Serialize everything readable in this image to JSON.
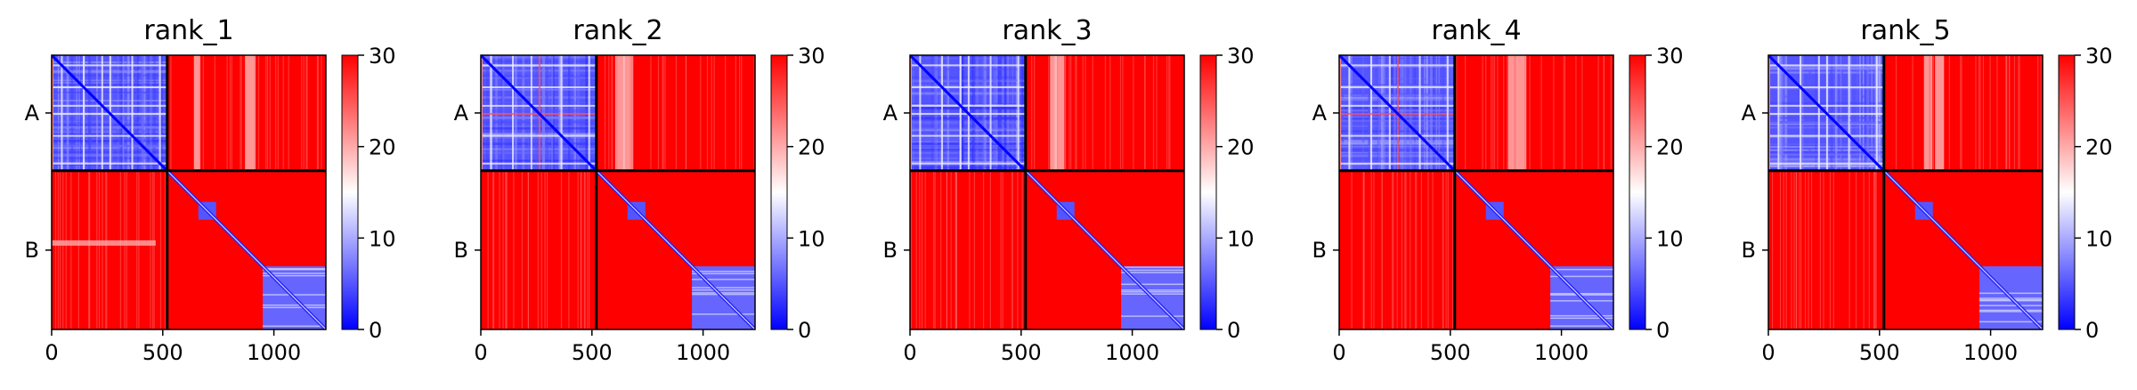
{
  "chart_data": [
    {
      "type": "heatmap",
      "title": "rank_1",
      "y_categories": [
        "A",
        "B"
      ],
      "x_ticks": [
        0,
        500,
        1000
      ],
      "xlim": [
        0,
        1234
      ],
      "chain_lengths": {
        "A": 520,
        "B": 714
      },
      "colorbar": {
        "ticks": [
          0,
          10,
          20,
          30
        ],
        "range": [
          0,
          30
        ],
        "colormap": "bwr"
      },
      "variant": 1
    },
    {
      "type": "heatmap",
      "title": "rank_2",
      "y_categories": [
        "A",
        "B"
      ],
      "x_ticks": [
        0,
        500,
        1000
      ],
      "xlim": [
        0,
        1234
      ],
      "chain_lengths": {
        "A": 520,
        "B": 714
      },
      "colorbar": {
        "ticks": [
          0,
          10,
          20,
          30
        ],
        "range": [
          0,
          30
        ],
        "colormap": "bwr"
      },
      "variant": 2
    },
    {
      "type": "heatmap",
      "title": "rank_3",
      "y_categories": [
        "A",
        "B"
      ],
      "x_ticks": [
        0,
        500,
        1000
      ],
      "xlim": [
        0,
        1234
      ],
      "chain_lengths": {
        "A": 520,
        "B": 714
      },
      "colorbar": {
        "ticks": [
          0,
          10,
          20,
          30
        ],
        "range": [
          0,
          30
        ],
        "colormap": "bwr"
      },
      "variant": 3
    },
    {
      "type": "heatmap",
      "title": "rank_4",
      "y_categories": [
        "A",
        "B"
      ],
      "x_ticks": [
        0,
        500,
        1000
      ],
      "xlim": [
        0,
        1234
      ],
      "chain_lengths": {
        "A": 520,
        "B": 714
      },
      "colorbar": {
        "ticks": [
          0,
          10,
          20,
          30
        ],
        "range": [
          0,
          30
        ],
        "colormap": "bwr"
      },
      "variant": 4
    },
    {
      "type": "heatmap",
      "title": "rank_5",
      "y_categories": [
        "A",
        "B"
      ],
      "x_ticks": [
        0,
        500,
        1000
      ],
      "xlim": [
        0,
        1234
      ],
      "chain_lengths": {
        "A": 520,
        "B": 714
      },
      "colorbar": {
        "ticks": [
          0,
          10,
          20,
          30
        ],
        "range": [
          0,
          30
        ],
        "colormap": "bwr"
      },
      "variant": 5
    }
  ]
}
